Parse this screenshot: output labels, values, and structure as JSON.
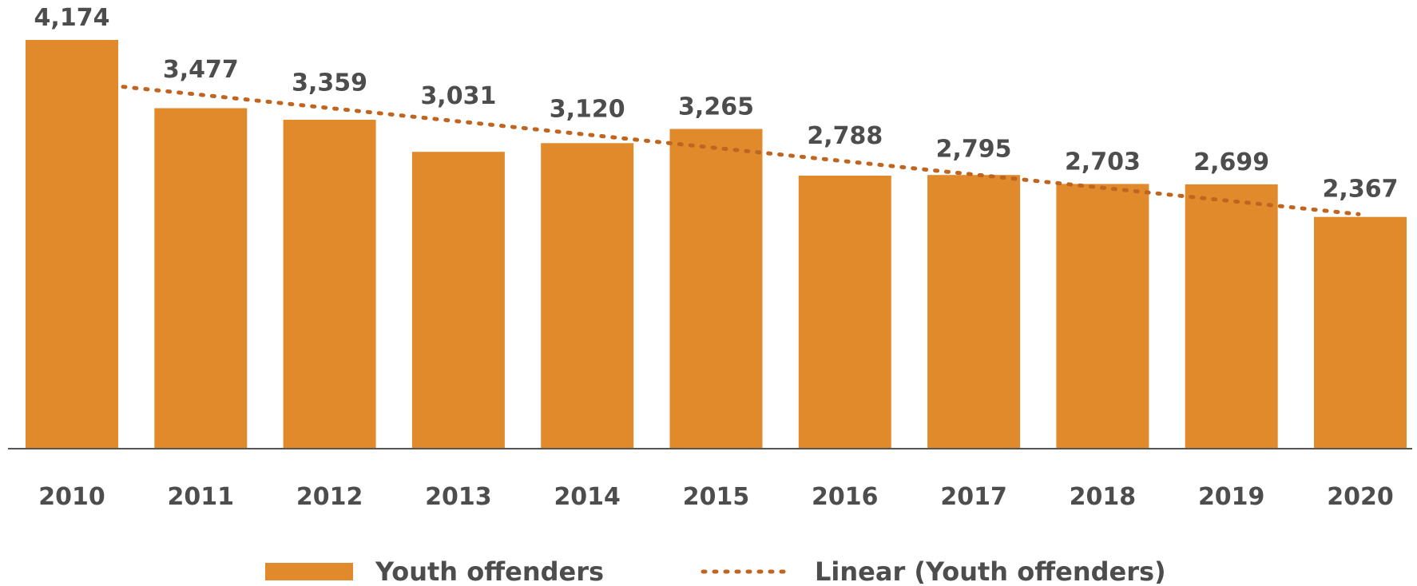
{
  "chart_data": {
    "type": "bar",
    "categories": [
      "2010",
      "2011",
      "2012",
      "2013",
      "2014",
      "2015",
      "2016",
      "2017",
      "2018",
      "2019",
      "2020"
    ],
    "series": [
      {
        "name": "Youth offenders",
        "values": [
          4174,
          3477,
          3359,
          3031,
          3120,
          3265,
          2788,
          2795,
          2703,
          2699,
          2367
        ],
        "value_labels": [
          "4,174",
          "3,477",
          "3,359",
          "3,031",
          "3,120",
          "3,265",
          "2,788",
          "2,795",
          "2,703",
          "2,699",
          "2,367"
        ],
        "color": "#e08a2c"
      }
    ],
    "trendline": {
      "name": "Linear (Youth offenders)",
      "kind": "linear",
      "style": "dotted",
      "color": "#c0651f"
    },
    "title": "",
    "xlabel": "",
    "ylabel": "",
    "ylim": [
      0,
      4300
    ],
    "grid": false,
    "y_axis_visible": false,
    "legend_position": "bottom"
  }
}
